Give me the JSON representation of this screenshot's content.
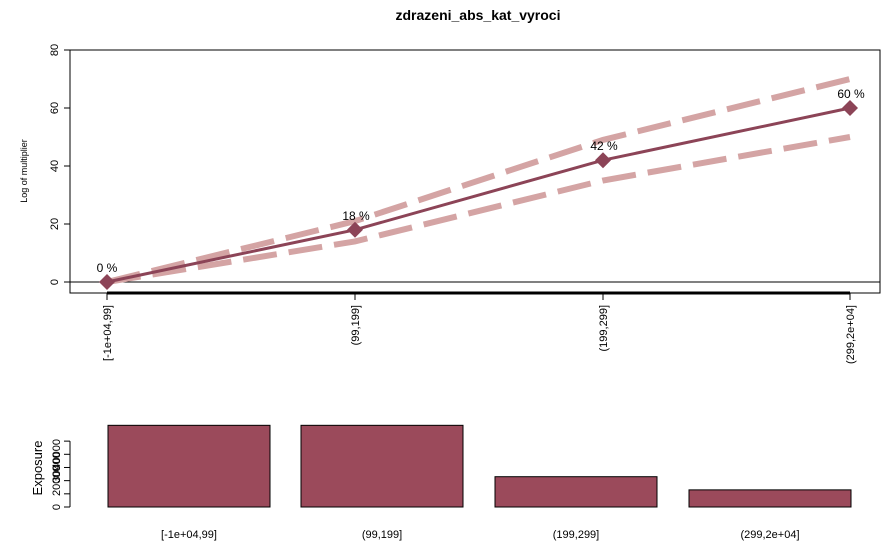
{
  "chart_data": [
    {
      "type": "line",
      "title": "zdrazeni_abs_kat_vyroci",
      "ylabel": "Log of multiplier",
      "ylim": [
        0,
        80
      ],
      "yticks": [
        0,
        20,
        40,
        60,
        80
      ],
      "categories": [
        "[-1e+04,99]",
        "(99,199]",
        "(199,299]",
        "(299,2e+04]"
      ],
      "series": [
        {
          "role": "estimate",
          "values": [
            0,
            18,
            42,
            60
          ],
          "labels": [
            "0 %",
            "18 %",
            "42 %",
            "60 %"
          ],
          "color": "#8c4457"
        },
        {
          "role": "upper",
          "values": [
            0,
            21,
            49,
            70
          ],
          "color": "#d4a4a4"
        },
        {
          "role": "lower",
          "values": [
            0,
            14,
            35,
            50
          ],
          "color": "#d4a4a4"
        }
      ]
    },
    {
      "type": "bar",
      "ylabel": "Exposure",
      "ylim": [
        0,
        63000
      ],
      "yticks": [
        0,
        10000,
        20000,
        30000,
        40000,
        50000
      ],
      "ytick_labels": [
        "0",
        "",
        "20000",
        "30000",
        "40000",
        ""
      ],
      "categories": [
        "[-1e+04,99]",
        "(99,199]",
        "(199,299]",
        "(299,2e+04]"
      ],
      "values": [
        62000,
        62000,
        23000,
        13000
      ],
      "color": "#9b4a5b"
    }
  ]
}
